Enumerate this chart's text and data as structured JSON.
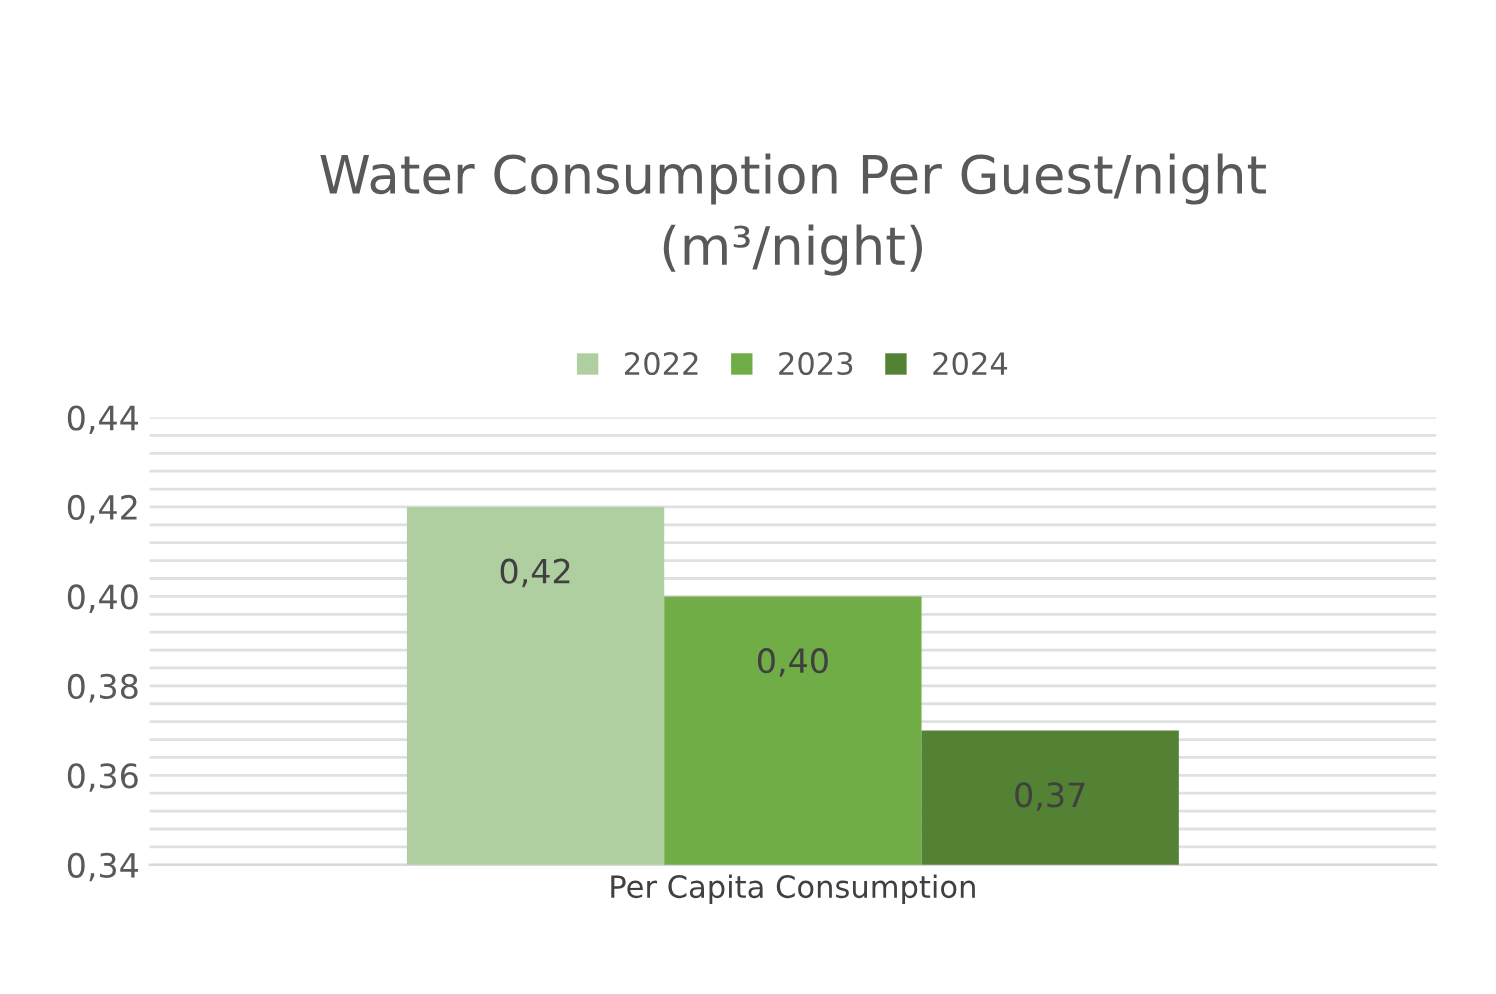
{
  "chart_data": {
    "type": "bar",
    "title": "Water Consumption Per Guest/night\n(m³/night)",
    "categories": [
      "Per Capita Consumption"
    ],
    "series": [
      {
        "name": "2022",
        "color": "#b0cfa0",
        "values": [
          0.42
        ],
        "value_labels": [
          "0,42"
        ]
      },
      {
        "name": "2023",
        "color": "#70ad47",
        "values": [
          0.4
        ],
        "value_labels": [
          "0,40"
        ]
      },
      {
        "name": "2024",
        "color": "#548235",
        "values": [
          0.37
        ],
        "value_labels": [
          "0,37"
        ]
      }
    ],
    "ylim": [
      0.34,
      0.44
    ],
    "yticks": [
      {
        "value": 0.34,
        "label": "0,34"
      },
      {
        "value": 0.344,
        "label": null
      },
      {
        "value": 0.348,
        "label": null
      },
      {
        "value": 0.352,
        "label": null
      },
      {
        "value": 0.356,
        "label": null
      },
      {
        "value": 0.36,
        "label": "0,36"
      },
      {
        "value": 0.364,
        "label": null
      },
      {
        "value": 0.368,
        "label": null
      },
      {
        "value": 0.372,
        "label": null
      },
      {
        "value": 0.376,
        "label": null
      },
      {
        "value": 0.38,
        "label": "0,38"
      },
      {
        "value": 0.384,
        "label": null
      },
      {
        "value": 0.388,
        "label": null
      },
      {
        "value": 0.392,
        "label": null
      },
      {
        "value": 0.396,
        "label": null
      },
      {
        "value": 0.4,
        "label": "0,40"
      },
      {
        "value": 0.404,
        "label": null
      },
      {
        "value": 0.408,
        "label": null
      },
      {
        "value": 0.412,
        "label": null
      },
      {
        "value": 0.416,
        "label": null
      },
      {
        "value": 0.42,
        "label": "0,42"
      },
      {
        "value": 0.424,
        "label": null
      },
      {
        "value": 0.428,
        "label": null
      },
      {
        "value": 0.432,
        "label": null
      },
      {
        "value": 0.436,
        "label": null
      },
      {
        "value": 0.44,
        "label": "0,44"
      }
    ],
    "grid": "y",
    "legend": "top"
  }
}
